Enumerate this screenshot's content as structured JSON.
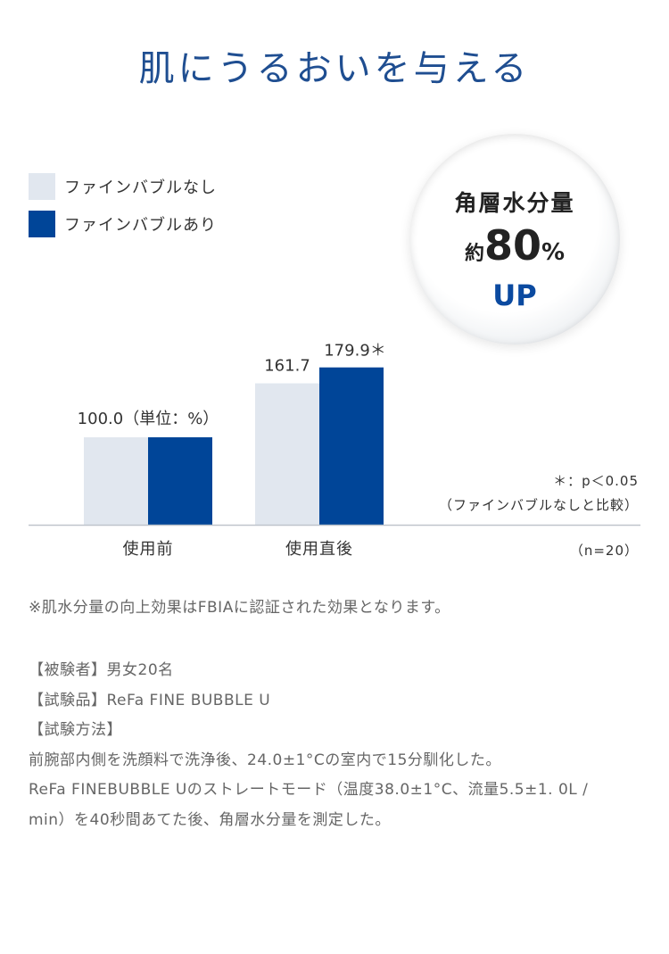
{
  "title": "肌にうるおいを与える",
  "legend": {
    "items": [
      {
        "label": "ファインバブルなし",
        "color": "#e1e7ef"
      },
      {
        "label": "ファインバブルあり",
        "color": "#004598"
      }
    ]
  },
  "badge": {
    "line1": "角層水分量",
    "prefix": "約",
    "value": "80",
    "unit": "%",
    "line3": "UP"
  },
  "chart_data": {
    "type": "bar",
    "categories": [
      "使用前",
      "使用直後"
    ],
    "series": [
      {
        "name": "ファインバブルなし",
        "values": [
          100.0,
          161.7
        ],
        "color": "#e1e7ef"
      },
      {
        "name": "ファインバブルあり",
        "values": [
          100.0,
          179.9
        ],
        "color": "#004598"
      }
    ],
    "value_labels": [
      "100.0（単位：%）",
      "161.7",
      "179.9＊"
    ],
    "legend_position": "top-left",
    "grid": false
  },
  "notes": {
    "significance": "＊：p＜0.05",
    "comparison": "（ファインバブルなしと比較）",
    "sample": "（n=20）"
  },
  "footnote": "※肌水分量の向上効果はFBIAに認証された効果となります。",
  "details": [
    "【被験者】男女20名",
    "【試験品】ReFa FINE BUBBLE U",
    "【試験方法】",
    "前腕部内側を洗顔料で洗浄後、24.0±1°Cの室内で15分馴化した。",
    "ReFa FINEBUBBLE Uのストレートモード（温度38.0±1°C、流量5.5±1. 0L /",
    "min）を40秒間あてた後、角層水分量を測定した。"
  ]
}
